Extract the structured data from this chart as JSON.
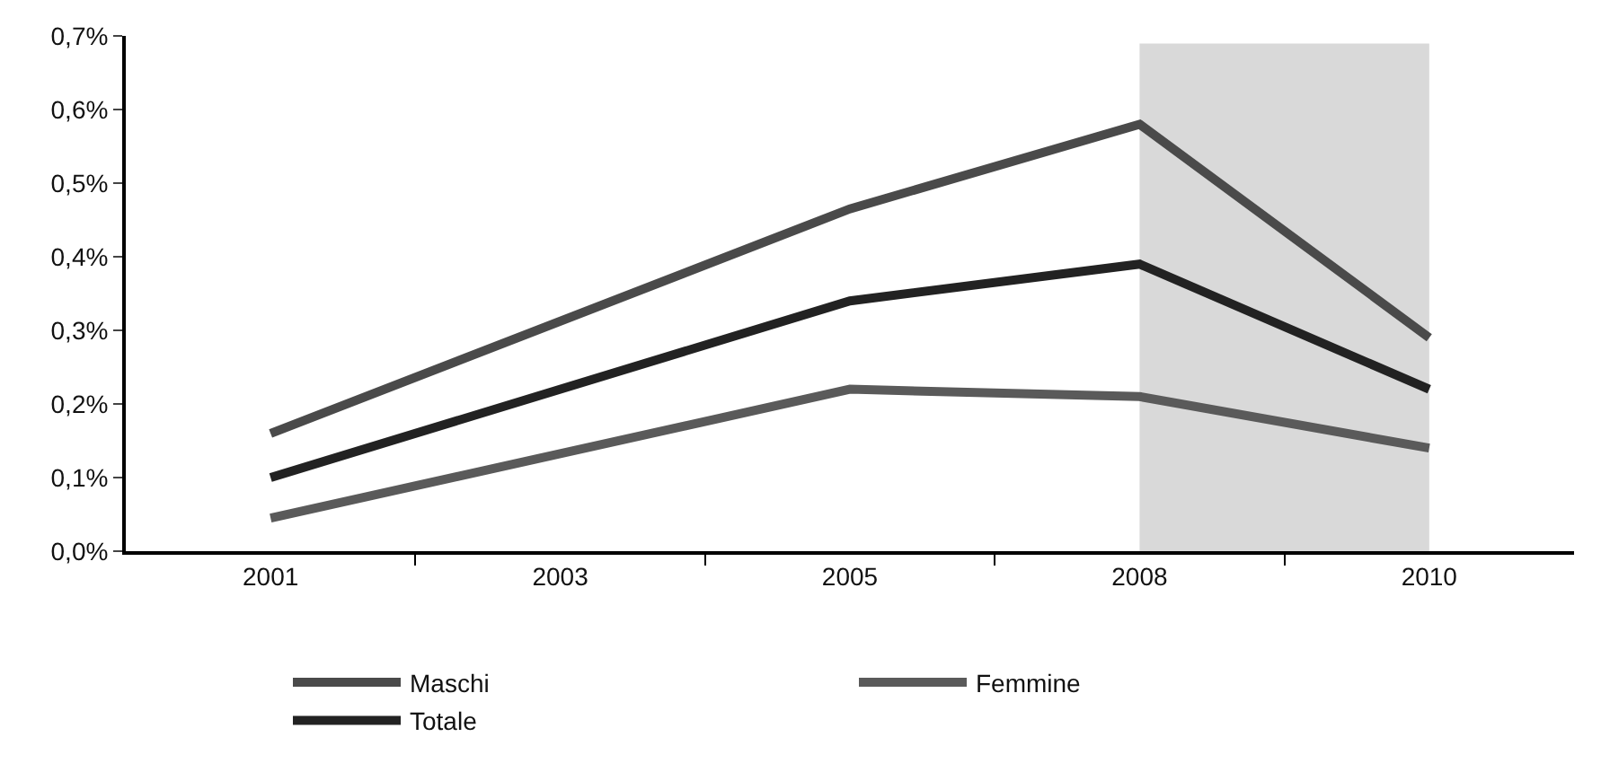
{
  "chart_data": {
    "type": "line",
    "categories": [
      "2001",
      "2003",
      "2005",
      "2008",
      "2010"
    ],
    "series": [
      {
        "name": "Maschi",
        "color": "#4a4a4a",
        "values": [
          0.16,
          null,
          0.465,
          0.58,
          0.29
        ]
      },
      {
        "name": "Femmine",
        "color": "#5a5a5a",
        "values": [
          0.045,
          null,
          0.22,
          0.21,
          0.14
        ]
      },
      {
        "name": "Totale",
        "color": "#222222",
        "values": [
          0.1,
          null,
          0.34,
          0.39,
          0.22
        ]
      }
    ],
    "ylim": [
      0,
      0.7
    ],
    "yticks": [
      {
        "value": 0,
        "label": "0,0%"
      },
      {
        "value": 0.1,
        "label": "0,1%"
      },
      {
        "value": 0.2,
        "label": "0,2%"
      },
      {
        "value": 0.3,
        "label": "0,3%"
      },
      {
        "value": 0.4,
        "label": "0,4%"
      },
      {
        "value": 0.5,
        "label": "0,5%"
      },
      {
        "value": 0.6,
        "label": "0,6%"
      },
      {
        "value": 0.7,
        "label": "0,7%"
      }
    ],
    "bands": [
      {
        "axis": "x",
        "from": "2008",
        "to": "2010",
        "color": "#d9d9d9"
      }
    ],
    "grid": false,
    "legend": "bottom",
    "marker": "none",
    "line_style": "solid"
  }
}
